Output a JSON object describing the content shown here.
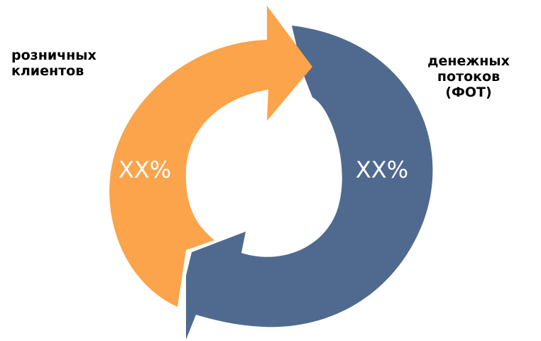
{
  "left_label": {
    "lines": [
      "розничных",
      "клиентов"
    ]
  },
  "right_label": {
    "lines": [
      "денежных",
      "потоков",
      "(ФОТ)"
    ]
  },
  "segments": [
    {
      "value_text": "XX%",
      "color": "#fba44b"
    },
    {
      "value_text": "XX%",
      "color": "#506a8f"
    }
  ]
}
